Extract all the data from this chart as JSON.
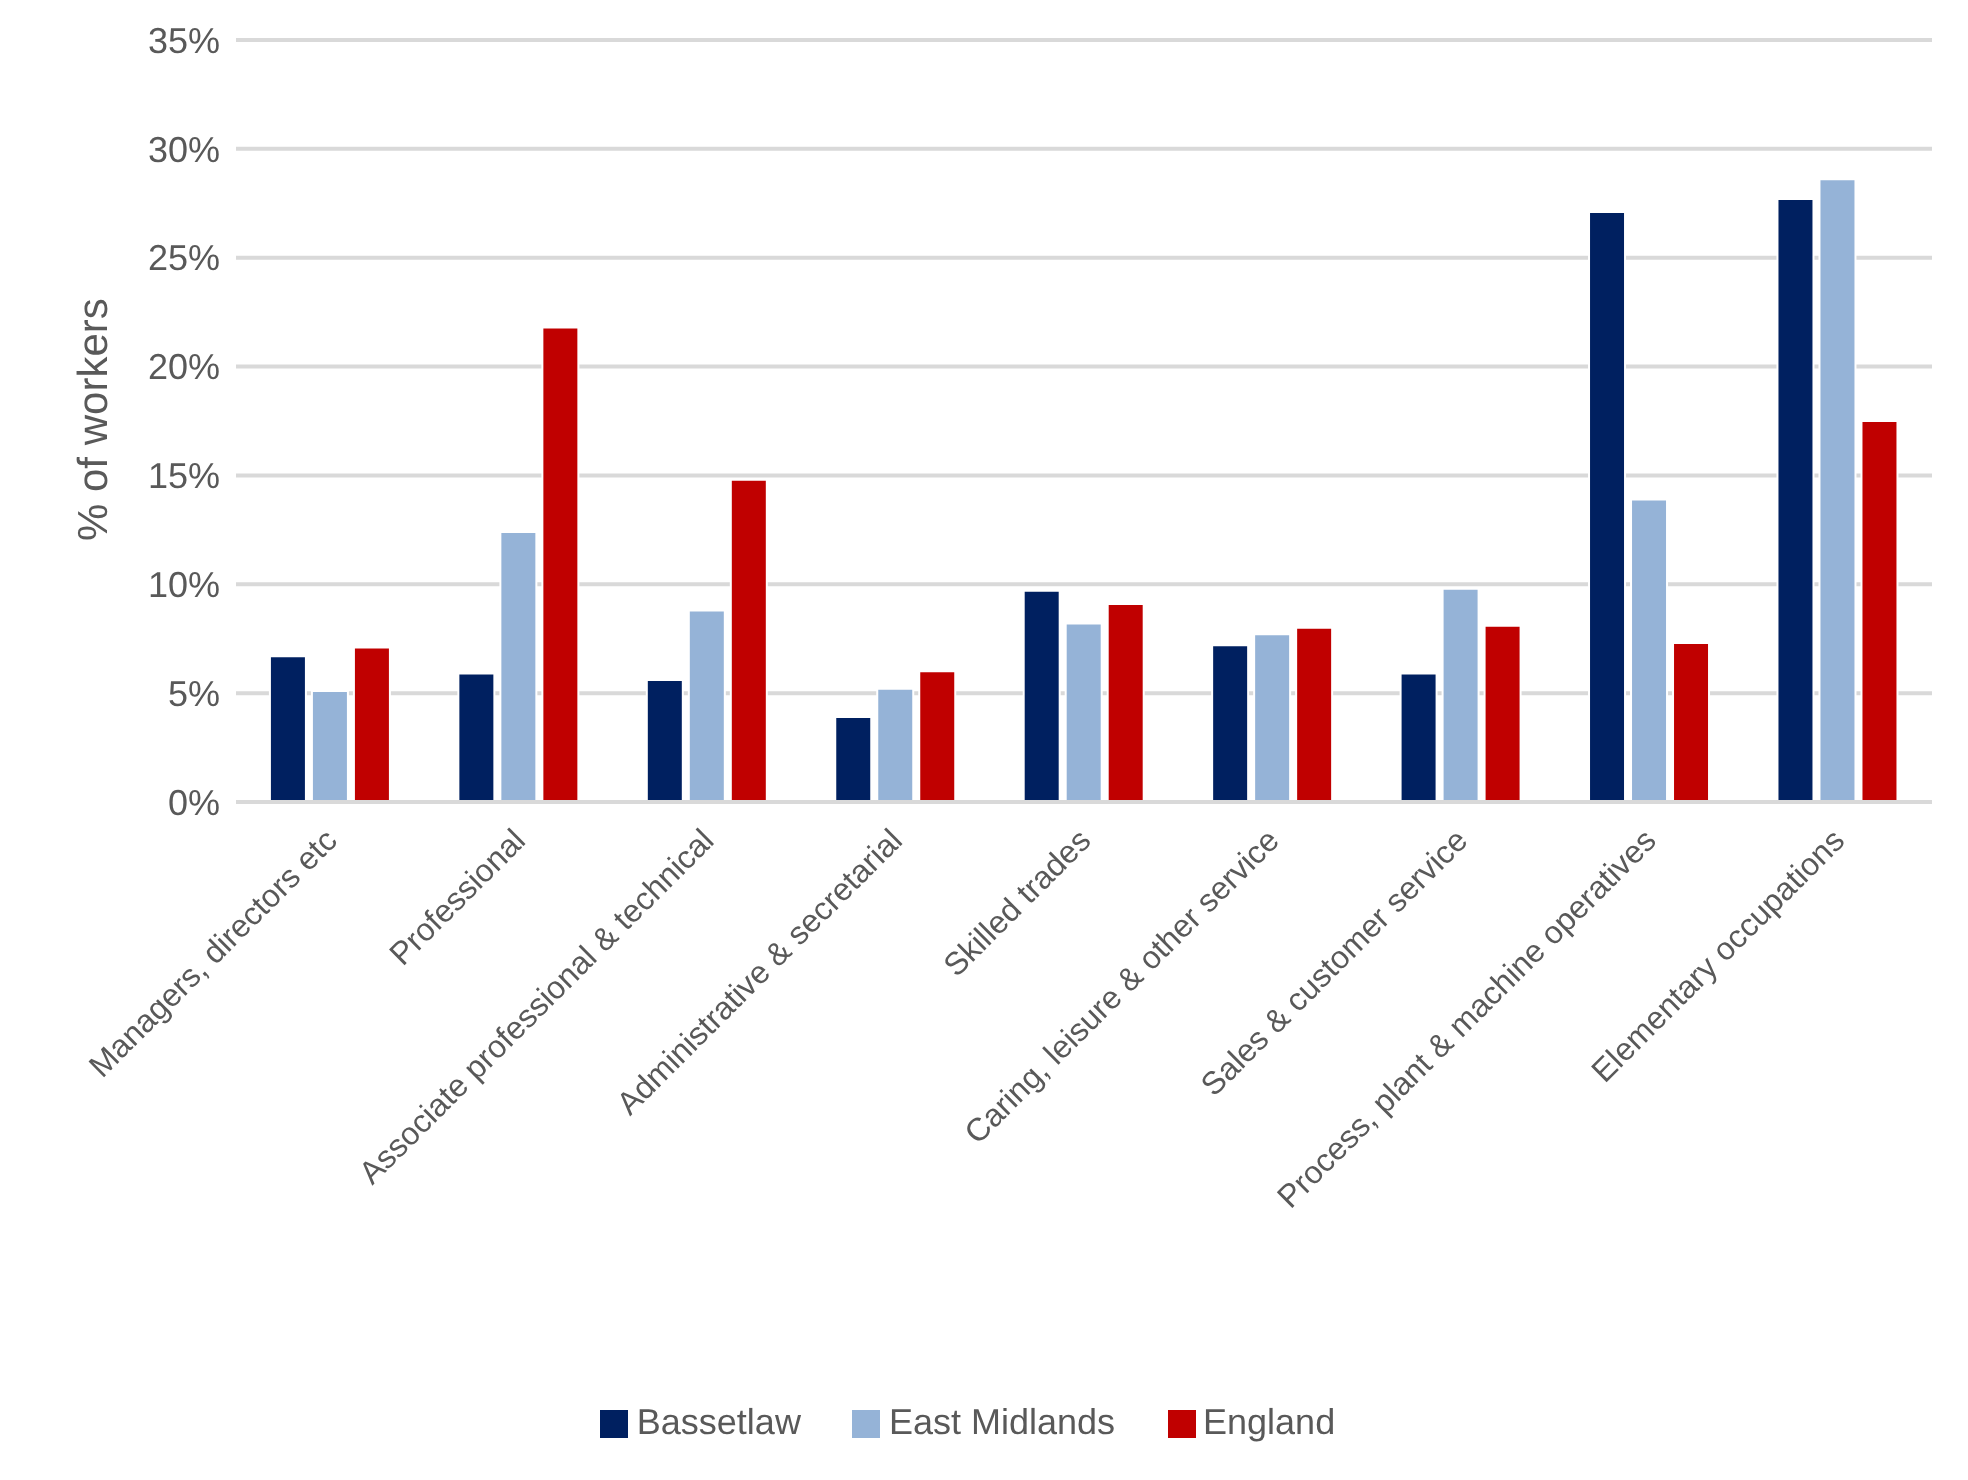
{
  "chart_data": {
    "type": "bar",
    "ylabel": "% of workers",
    "categories": [
      "Managers, directors etc",
      "Professional",
      "Associate professional & technical",
      "Administrative & secretarial",
      "Skilled trades",
      "Caring, leisure & other service",
      "Sales & customer service",
      "Process, plant & machine operatives",
      "Elementary occupations"
    ],
    "series": [
      {
        "name": "Bassetlaw",
        "color": "#002060",
        "values": [
          6.7,
          5.9,
          5.6,
          3.9,
          9.7,
          7.2,
          5.9,
          27.1,
          27.7
        ]
      },
      {
        "name": "East Midlands",
        "color": "#95b3d7",
        "values": [
          5.1,
          12.4,
          8.8,
          5.2,
          8.2,
          7.7,
          9.8,
          13.9,
          28.6
        ]
      },
      {
        "name": "England",
        "color": "#c00000",
        "values": [
          7.1,
          21.8,
          14.8,
          6.0,
          9.1,
          8.0,
          8.1,
          7.3,
          17.5
        ]
      }
    ],
    "ylim": [
      0,
      35
    ],
    "yticks": [
      {
        "value": 0,
        "label": "0%"
      },
      {
        "value": 5,
        "label": "5%"
      },
      {
        "value": 10,
        "label": "10%"
      },
      {
        "value": 15,
        "label": "15%"
      },
      {
        "value": 20,
        "label": "20%"
      },
      {
        "value": 25,
        "label": "25%"
      },
      {
        "value": 30,
        "label": "30%"
      },
      {
        "value": 35,
        "label": "35%"
      }
    ],
    "grid": "y",
    "legend": "bottom"
  }
}
